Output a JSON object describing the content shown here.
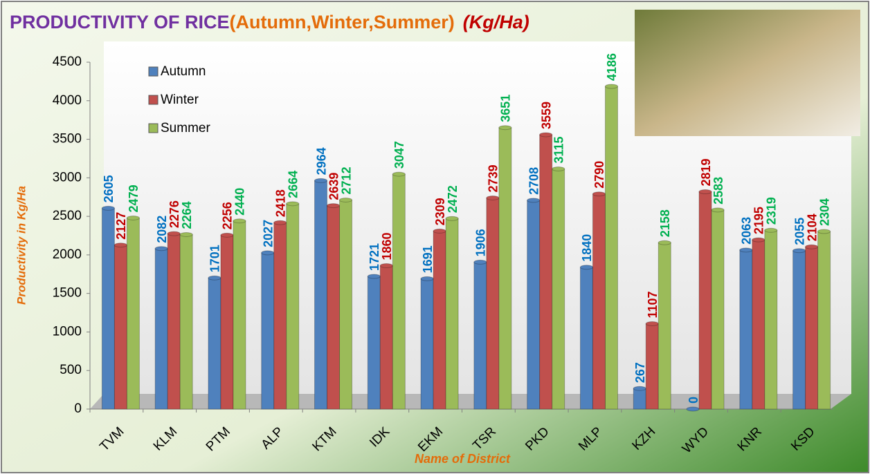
{
  "chart_data": {
    "type": "bar",
    "title": "PRODUCTIVITY OF RICE",
    "subtitle": "(Autumn,Winter,Summer)",
    "unit": "(Kg/Ha)",
    "y_label": "Productivity in Kg/Ha",
    "x_label": "Name of District",
    "categories": [
      "TVM",
      "KLM",
      "PTM",
      "ALP",
      "KTM",
      "IDK",
      "EKM",
      "TSR",
      "PKD",
      "MLP",
      "KZH",
      "WYD",
      "KNR",
      "KSD"
    ],
    "series": [
      {
        "name": "Autumn",
        "color": "#4f81bd",
        "label_color": "#0070c0",
        "values": [
          2605,
          2082,
          1701,
          2027,
          2964,
          1721,
          1691,
          1906,
          2708,
          1840,
          267,
          0,
          2063,
          2055
        ]
      },
      {
        "name": "Winter",
        "color": "#c0504d",
        "label_color": "#c00000",
        "values": [
          2127,
          2276,
          2256,
          2418,
          2639,
          1860,
          2309,
          2739,
          3559,
          2790,
          1107,
          2819,
          2195,
          2104
        ]
      },
      {
        "name": "Summer",
        "color": "#9bbb59",
        "label_color": "#00b050",
        "values": [
          2479,
          2264,
          2440,
          2664,
          2712,
          3047,
          2472,
          3651,
          3115,
          4186,
          2158,
          2583,
          2319,
          2304
        ]
      }
    ],
    "ylim": [
      0,
      4500
    ],
    "yticks": [
      0,
      500,
      1000,
      1500,
      2000,
      2500,
      3000,
      3500,
      4000,
      4500
    ],
    "grid": false,
    "legend": "top-left"
  }
}
